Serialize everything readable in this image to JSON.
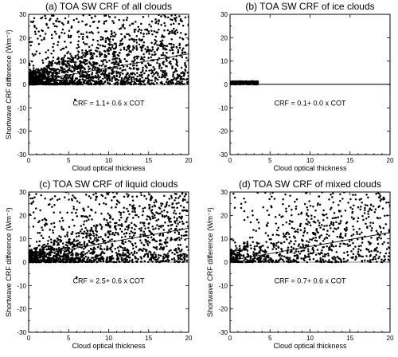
{
  "chart_data": [
    {
      "type": "scatter",
      "title": "(a) TOA SW CRF of all clouds",
      "xlabel": "Cloud optical thickness",
      "ylabel": "Shortwave CRF difference (Wm⁻²)",
      "xlim": [
        0,
        20
      ],
      "ylim": [
        -30,
        30
      ],
      "xticks": [
        0,
        5,
        10,
        15,
        20
      ],
      "yticks": [
        -30,
        -20,
        -10,
        0,
        10,
        20,
        30
      ],
      "equation": "CRF =  1.1+ 0.6 x COT",
      "fit": {
        "intercept": 1.1,
        "slope": 0.6
      },
      "grid": false,
      "cloud": {
        "xmax": 20,
        "density": 1.0,
        "spread": 1.0
      },
      "outliers": [
        [
          5.8,
          -6.5
        ]
      ]
    },
    {
      "type": "scatter",
      "title": "(b) TOA SW CRF of ice clouds",
      "xlabel": "Cloud optical thickness",
      "ylabel": "",
      "xlim": [
        0,
        20
      ],
      "ylim": [
        -30,
        30
      ],
      "xticks": [
        0,
        5,
        10,
        15,
        20
      ],
      "yticks": [
        -30,
        -20,
        -10,
        0,
        10,
        20,
        30
      ],
      "equation": "CRF =  0.1+ 0.0 x COT",
      "fit": {
        "intercept": 0.1,
        "slope": 0.0
      },
      "grid": false,
      "cloud": {
        "xmax": 3.5,
        "density": 0.25,
        "spread": 0.0
      },
      "outliers": []
    },
    {
      "type": "scatter",
      "title": "(c) TOA SW CRF of liquid clouds",
      "xlabel": "Cloud optical thickness",
      "ylabel": "Shortwave CRF difference (Wm⁻²)",
      "xlim": [
        0,
        20
      ],
      "ylim": [
        -30,
        30
      ],
      "xticks": [
        0,
        5,
        10,
        15,
        20
      ],
      "yticks": [
        -30,
        -20,
        -10,
        0,
        10,
        20,
        30
      ],
      "equation": "CRF =  2.5+ 0.6 x COT",
      "fit": {
        "intercept": 2.5,
        "slope": 0.6
      },
      "grid": false,
      "cloud": {
        "xmax": 20,
        "density": 0.8,
        "spread": 1.0
      },
      "outliers": [
        [
          6.0,
          -6.5
        ]
      ]
    },
    {
      "type": "scatter",
      "title": "(d) TOA SW CRF of mixed clouds",
      "xlabel": "Cloud optical thickness",
      "ylabel": "Shortwave CRF difference (Wm⁻²)",
      "xlim": [
        0,
        20
      ],
      "ylim": [
        -30,
        30
      ],
      "xticks": [
        0,
        5,
        10,
        15,
        20
      ],
      "yticks": [
        -30,
        -20,
        -10,
        0,
        10,
        20,
        30
      ],
      "equation": "CRF =  0.7+ 0.6 x COT",
      "fit": {
        "intercept": 0.7,
        "slope": 0.6
      },
      "grid": false,
      "cloud": {
        "xmax": 20,
        "density": 0.45,
        "spread": 1.0
      },
      "outliers": []
    }
  ]
}
